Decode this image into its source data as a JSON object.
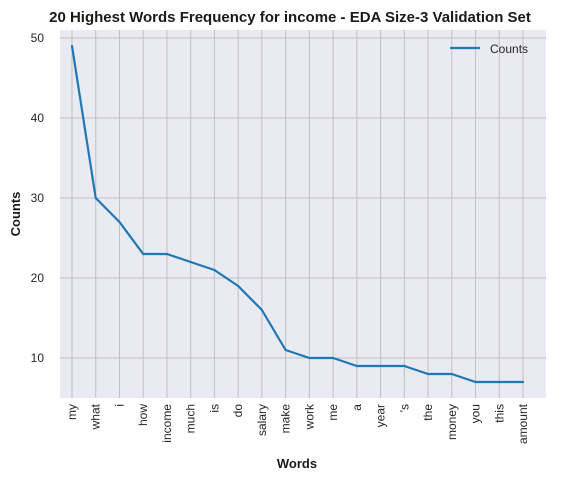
{
  "chart_data": {
    "type": "line",
    "title": "20 Highest Words Frequency for income - EDA Size-3 Validation Set",
    "xlabel": "Words",
    "ylabel": "Counts",
    "categories": [
      "my",
      "what",
      "i",
      "how",
      "income",
      "much",
      "is",
      "do",
      "salary",
      "make",
      "work",
      "me",
      "a",
      "year",
      "'s",
      "the",
      "money",
      "you",
      "this",
      "amount"
    ],
    "series": [
      {
        "name": "Counts",
        "values": [
          49,
          30,
          27,
          23,
          23,
          22,
          21,
          19,
          16,
          11,
          10,
          10,
          9,
          9,
          9,
          8,
          8,
          7,
          7,
          7
        ],
        "color": "#1f77b4"
      }
    ],
    "ylim": [
      5,
      51
    ],
    "yticks": [
      10,
      20,
      30,
      40,
      50
    ],
    "grid": true,
    "legend_position": "top-right",
    "background_color": "#eaeaf2",
    "grid_color": "#c0c0c0"
  }
}
